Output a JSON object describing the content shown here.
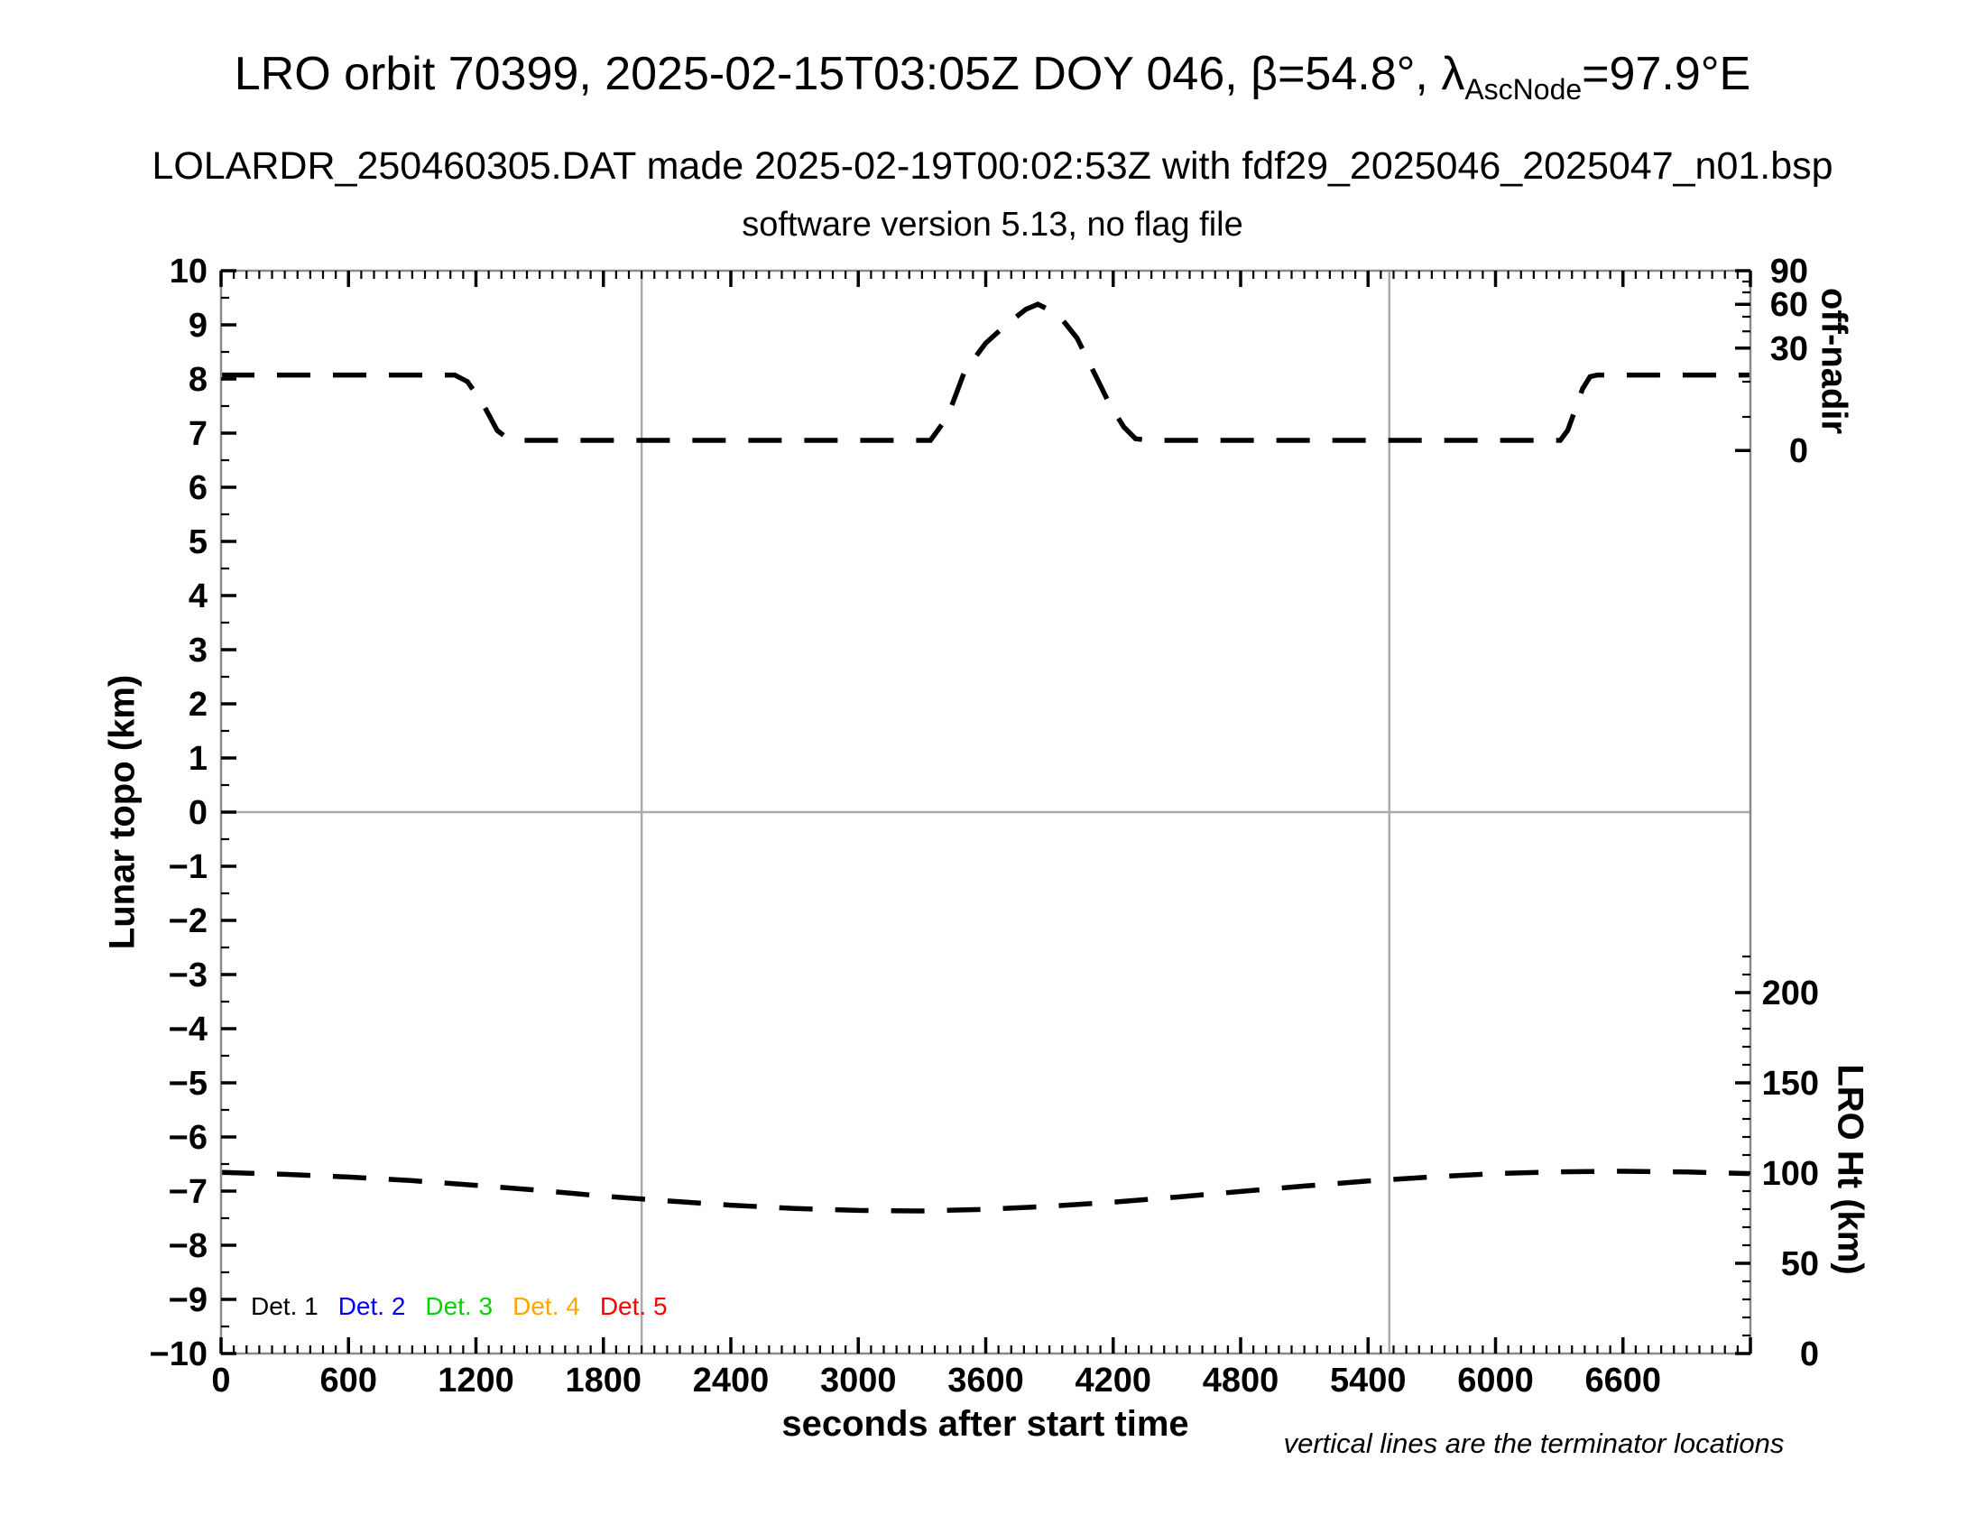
{
  "header": {
    "title_prefix": "LRO orbit 70399, 2025-02-15T03:05Z DOY 046, β=54.8°, λ",
    "title_sub": "AscNode",
    "title_suffix": "=97.9°E",
    "subtitle": "LOLARDR_250460305.DAT made 2025-02-19T00:02:53Z with fdf29_2025046_2025047_n01.bsp",
    "subtitle2": "software version 5.13, no flag file"
  },
  "footnote": "vertical lines are the terminator locations",
  "chart_data": {
    "type": "line",
    "title": "LRO orbit 70399, 2025-02-15T03:05Z DOY 046, β=54.8°, λAscNode=97.9°E",
    "subtitle": "LOLARDR_250460305.DAT made 2025-02-19T00:02:53Z with fdf29_2025046_2025047_n01.bsp",
    "subtitle2": "software version 5.13, no flag file",
    "xlabel": "seconds after start time",
    "ylabel_left": "Lunar topo (km)",
    "ylabel_right_top": "off-nadir",
    "ylabel_right_bottom": "LRO Ht (km)",
    "x_range_seconds": [
      0,
      7200
    ],
    "x_major_ticks": [
      0,
      600,
      1200,
      1800,
      2400,
      3000,
      3600,
      4200,
      4800,
      5400,
      6000,
      6600
    ],
    "x_minor_step": 60,
    "y_left_range": [
      -10,
      10
    ],
    "y_left_major_step": 1,
    "y_left_minor_step": 0.5,
    "off_nadir_axis": {
      "unit": "degrees",
      "labeled_ticks": [
        0,
        30,
        60,
        90
      ],
      "scale_deg_to_topo": [
        [
          0,
          6.68
        ],
        [
          10,
          7.3
        ],
        [
          20,
          7.95
        ],
        [
          30,
          8.57
        ],
        [
          40,
          8.88
        ],
        [
          50,
          9.15
        ],
        [
          60,
          9.38
        ],
        [
          70,
          9.6
        ],
        [
          80,
          9.8
        ],
        [
          90,
          10.0
        ]
      ]
    },
    "lro_ht_axis": {
      "unit": "km",
      "labeled_ticks": [
        0,
        50,
        100,
        150,
        200
      ],
      "minor_step_km": 10,
      "minor_max_km": 220,
      "km_to_topo_rule": "topo = -10 + km/30"
    },
    "terminator_times_s": [
      1980,
      5500
    ],
    "series": [
      {
        "name": "off-nadir angle",
        "axis": "right-top",
        "unit": "deg",
        "style": "dashed-black",
        "points": [
          [
            0,
            22
          ],
          [
            1100,
            22
          ],
          [
            1160,
            20
          ],
          [
            1230,
            14
          ],
          [
            1300,
            6
          ],
          [
            1355,
            3.3
          ],
          [
            1420,
            3
          ],
          [
            3340,
            3
          ],
          [
            3420,
            10
          ],
          [
            3500,
            23
          ],
          [
            3600,
            33
          ],
          [
            3700,
            45
          ],
          [
            3790,
            56
          ],
          [
            3845,
            60
          ],
          [
            3905,
            55
          ],
          [
            3960,
            48
          ],
          [
            4030,
            36
          ],
          [
            4100,
            24
          ],
          [
            4180,
            14
          ],
          [
            4250,
            7
          ],
          [
            4305,
            3.5
          ],
          [
            4370,
            3
          ],
          [
            6305,
            3
          ],
          [
            6340,
            6
          ],
          [
            6375,
            12
          ],
          [
            6410,
            18
          ],
          [
            6445,
            21.5
          ],
          [
            6480,
            22
          ],
          [
            7200,
            22
          ]
        ]
      },
      {
        "name": "LRO height",
        "axis": "right-bottom",
        "unit": "km",
        "style": "dashed-black",
        "points": [
          [
            0,
            100.4
          ],
          [
            300,
            99.3
          ],
          [
            600,
            97.8
          ],
          [
            900,
            95.8
          ],
          [
            1200,
            93.2
          ],
          [
            1500,
            90.4
          ],
          [
            1800,
            87.2
          ],
          [
            2100,
            84.6
          ],
          [
            2400,
            82.2
          ],
          [
            2700,
            80.4
          ],
          [
            3000,
            79.3
          ],
          [
            3300,
            79.0
          ],
          [
            3600,
            79.9
          ],
          [
            3900,
            81.6
          ],
          [
            4200,
            83.9
          ],
          [
            4500,
            86.7
          ],
          [
            4800,
            89.8
          ],
          [
            5100,
            92.8
          ],
          [
            5400,
            95.6
          ],
          [
            5700,
            97.9
          ],
          [
            6000,
            99.7
          ],
          [
            6300,
            100.7
          ],
          [
            6600,
            101.0
          ],
          [
            6900,
            100.6
          ],
          [
            7200,
            99.7
          ]
        ]
      }
    ],
    "legend": {
      "items": [
        {
          "label": "Det. 1",
          "color": "#000000"
        },
        {
          "label": "Det. 2",
          "color": "#0000ff"
        },
        {
          "label": "Det. 3",
          "color": "#00d400"
        },
        {
          "label": "Det. 4",
          "color": "#ffa500"
        },
        {
          "label": "Det. 5",
          "color": "#ff0000"
        }
      ]
    },
    "colors": {
      "curve": "#000000",
      "frame": "#8a8a8a",
      "zero_line": "#aaaaaa",
      "terminator_line": "#aaaaaa",
      "text": "#000000"
    },
    "grid": "off",
    "legend_position": "bottom-left-inside"
  }
}
